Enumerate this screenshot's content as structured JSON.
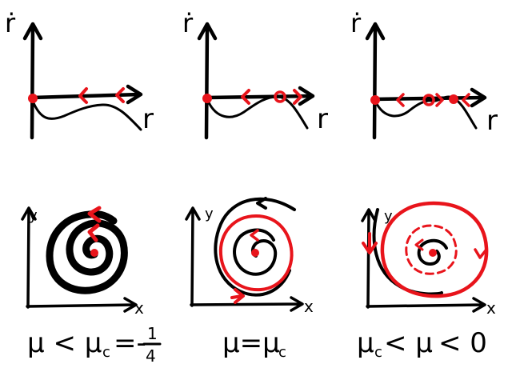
{
  "colors": {
    "ink": "#000000",
    "accent": "#e8141b",
    "background": "#ffffff"
  },
  "panels": [
    {
      "r_dot_label": "ṙ",
      "r_label": "r",
      "y_label": "y",
      "x_label": "x",
      "caption": "μ < μ_c = -1/4",
      "caption_parts": {
        "lhs": "μ < μ",
        "sub": "c",
        "eq": "=-",
        "num": "1",
        "den": "4"
      }
    },
    {
      "r_dot_label": "ṙ",
      "r_label": "r",
      "y_label": "y",
      "x_label": "x",
      "caption": "μ=μ_c",
      "caption_parts": {
        "lhs": "μ=μ",
        "sub": "c"
      }
    },
    {
      "r_dot_label": "ṙ",
      "r_label": "r",
      "y_label": "y",
      "x_label": "x",
      "caption": "μ_c < μ < 0",
      "caption_parts": {
        "lhs": "μ",
        "sub": "c",
        "mid": "< μ",
        "rhs": "< 0"
      }
    }
  ]
}
